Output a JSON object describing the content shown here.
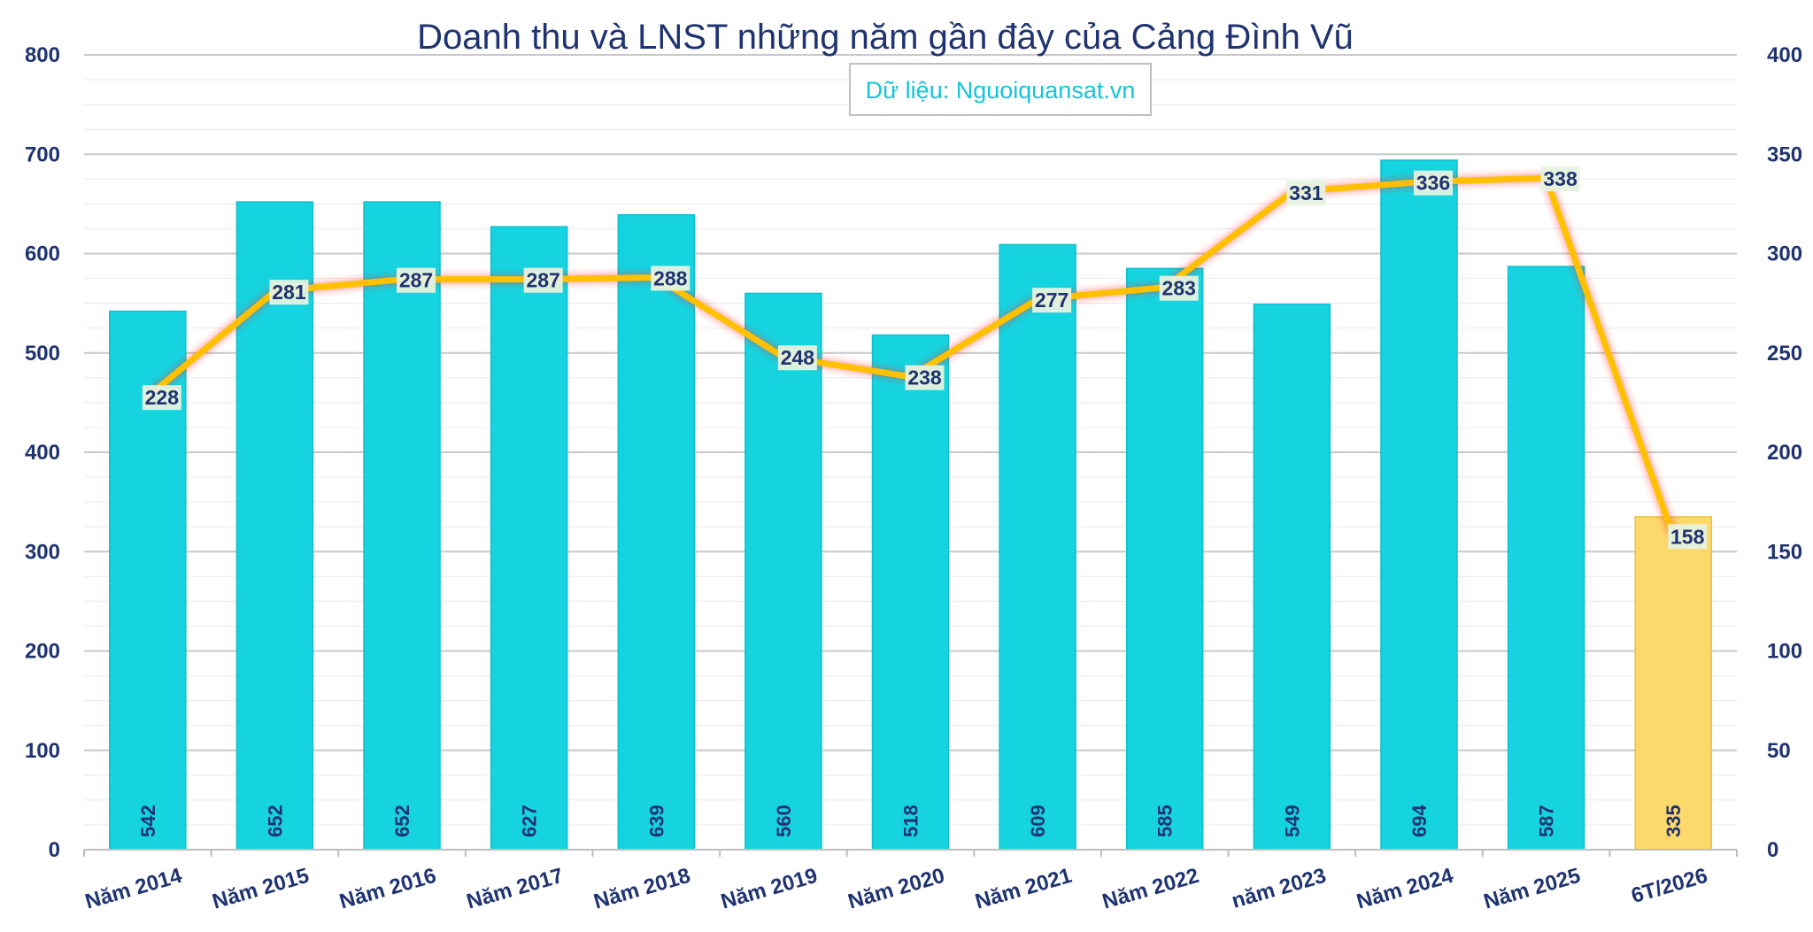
{
  "chart_data": {
    "type": "bar",
    "title": "Doanh thu và LNST những năm gần đây của Cảng Đình Vũ",
    "source_note": "Dữ liệu: Nguoiquansat.vn",
    "categories": [
      "Năm 2014",
      "Năm 2015",
      "Năm 2016",
      "Năm 2017",
      "Năm 2018",
      "Năm 2019",
      "Năm 2020",
      "Năm 2021",
      "Năm 2022",
      "năm 2023",
      "Năm 2024",
      "Năm 2025",
      "6T/2026"
    ],
    "series": [
      {
        "type": "bar",
        "axis": "left",
        "values": [
          542,
          652,
          652,
          627,
          639,
          560,
          518,
          609,
          585,
          549,
          694,
          587,
          335
        ],
        "labels": [
          "542",
          "652",
          "652",
          "627",
          "639",
          "560",
          "518",
          "609",
          "585",
          "549",
          "694",
          "587",
          "335"
        ],
        "color": "#16d3e0",
        "highlight_last_color": "#fdd86b"
      },
      {
        "type": "line",
        "axis": "right",
        "values": [
          228,
          281,
          287,
          287,
          288,
          248,
          238,
          277,
          283,
          331,
          336,
          338,
          158
        ],
        "labels": [
          "228",
          "281",
          "287",
          "287",
          "288",
          "248",
          "238",
          "277",
          "283",
          "331",
          "336",
          "338",
          "158"
        ],
        "color": "#ffc000"
      }
    ],
    "y_left": {
      "range": [
        0,
        800
      ],
      "ticks": [
        "0",
        "100",
        "200",
        "300",
        "400",
        "500",
        "600",
        "700",
        "800"
      ]
    },
    "y_right": {
      "range": [
        0,
        400
      ],
      "ticks": [
        "0",
        "50",
        "100",
        "150",
        "200",
        "250",
        "300",
        "350",
        "400"
      ]
    },
    "grid": true
  }
}
